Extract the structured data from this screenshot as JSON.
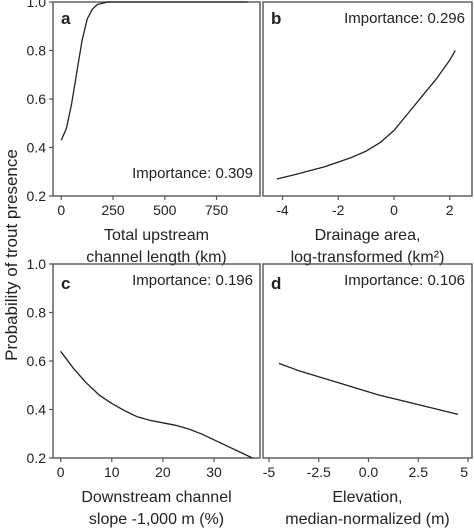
{
  "figure": {
    "ylabel": "Probability of trout presence"
  },
  "chart_data": [
    {
      "type": "line",
      "panel": "a",
      "annotation": "Importance: 0.309",
      "xlabel": [
        "Total upstream",
        "channel length (km)"
      ],
      "ylim": [
        0.2,
        1.0
      ],
      "yticks": [
        0.2,
        0.4,
        0.6,
        0.8,
        1.0
      ],
      "ytick_labels": [
        "0.2",
        "0.4",
        "0.6",
        "0.8",
        "1.0"
      ],
      "xlim": [
        -40,
        960
      ],
      "xticks": [
        0,
        250,
        500,
        750
      ],
      "xtick_labels": [
        "0",
        "250",
        "500",
        "750"
      ],
      "show_yticks": true,
      "x": [
        0,
        25,
        50,
        75,
        100,
        125,
        150,
        175,
        200,
        225,
        250,
        300,
        400,
        500,
        600,
        700,
        800,
        900
      ],
      "y": [
        0.43,
        0.48,
        0.58,
        0.71,
        0.84,
        0.93,
        0.97,
        0.99,
        0.995,
        1.0,
        1.0,
        1.0,
        1.0,
        1.0,
        1.0,
        1.0,
        1.0,
        1.0
      ]
    },
    {
      "type": "line",
      "panel": "b",
      "annotation": "Importance: 0.296",
      "xlabel": [
        "Drainage area,",
        "log-transformed (km²)"
      ],
      "ylim": [
        0.2,
        1.0
      ],
      "yticks": [
        0.2,
        0.4,
        0.6,
        0.8,
        1.0
      ],
      "ytick_labels": [
        "0.2",
        "0.4",
        "0.6",
        "0.8",
        "1.0"
      ],
      "xlim": [
        -4.7,
        2.8
      ],
      "xticks": [
        -4,
        -2,
        0,
        2
      ],
      "xtick_labels": [
        "-4",
        "-2",
        "0",
        "2"
      ],
      "show_yticks": false,
      "x": [
        -4.2,
        -3.5,
        -3.0,
        -2.5,
        -2.0,
        -1.5,
        -1.0,
        -0.5,
        0.0,
        0.5,
        1.0,
        1.5,
        2.0,
        2.2
      ],
      "y": [
        0.27,
        0.29,
        0.305,
        0.32,
        0.34,
        0.36,
        0.385,
        0.42,
        0.47,
        0.54,
        0.61,
        0.68,
        0.76,
        0.8
      ]
    },
    {
      "type": "line",
      "panel": "c",
      "annotation": "Importance: 0.196",
      "xlabel": [
        "Downstream channel",
        "slope -1,000 m (%)"
      ],
      "ylim": [
        0.2,
        1.0
      ],
      "yticks": [
        0.2,
        0.4,
        0.6,
        0.8,
        1.0
      ],
      "ytick_labels": [
        "0.2",
        "0.4",
        "0.6",
        "0.8",
        "1.0"
      ],
      "xlim": [
        -1.5,
        39
      ],
      "xticks": [
        0,
        10,
        20,
        30
      ],
      "xtick_labels": [
        "0",
        "10",
        "20",
        "30"
      ],
      "show_yticks": true,
      "x": [
        0,
        2.5,
        5,
        7.5,
        10,
        12.5,
        15,
        17.5,
        20,
        22.5,
        25,
        27.5,
        30,
        32.5,
        35,
        37.5
      ],
      "y": [
        0.64,
        0.57,
        0.51,
        0.46,
        0.425,
        0.395,
        0.37,
        0.355,
        0.345,
        0.335,
        0.32,
        0.3,
        0.275,
        0.25,
        0.225,
        0.2
      ]
    },
    {
      "type": "line",
      "panel": "d",
      "annotation": "Importance: 0.106",
      "xlabel": [
        "Elevation,",
        "median-normalized (m)"
      ],
      "ylim": [
        0.2,
        1.0
      ],
      "yticks": [
        0.2,
        0.4,
        0.6,
        0.8,
        1.0
      ],
      "ytick_labels": [
        "0.2",
        "0.4",
        "0.6",
        "0.8",
        "1.0"
      ],
      "xlim": [
        -5.3,
        5.2
      ],
      "xticks": [
        -5,
        -2.5,
        0,
        2.5,
        5
      ],
      "xtick_labels": [
        "-5",
        "-2.5",
        "0.0",
        "2.5",
        "5"
      ],
      "show_yticks": false,
      "x": [
        -4.5,
        -3.5,
        -2.5,
        -1.5,
        -0.5,
        0.5,
        1.5,
        2.5,
        3.5,
        4.5
      ],
      "y": [
        0.59,
        0.56,
        0.535,
        0.51,
        0.485,
        0.46,
        0.44,
        0.42,
        0.4,
        0.38
      ]
    }
  ]
}
